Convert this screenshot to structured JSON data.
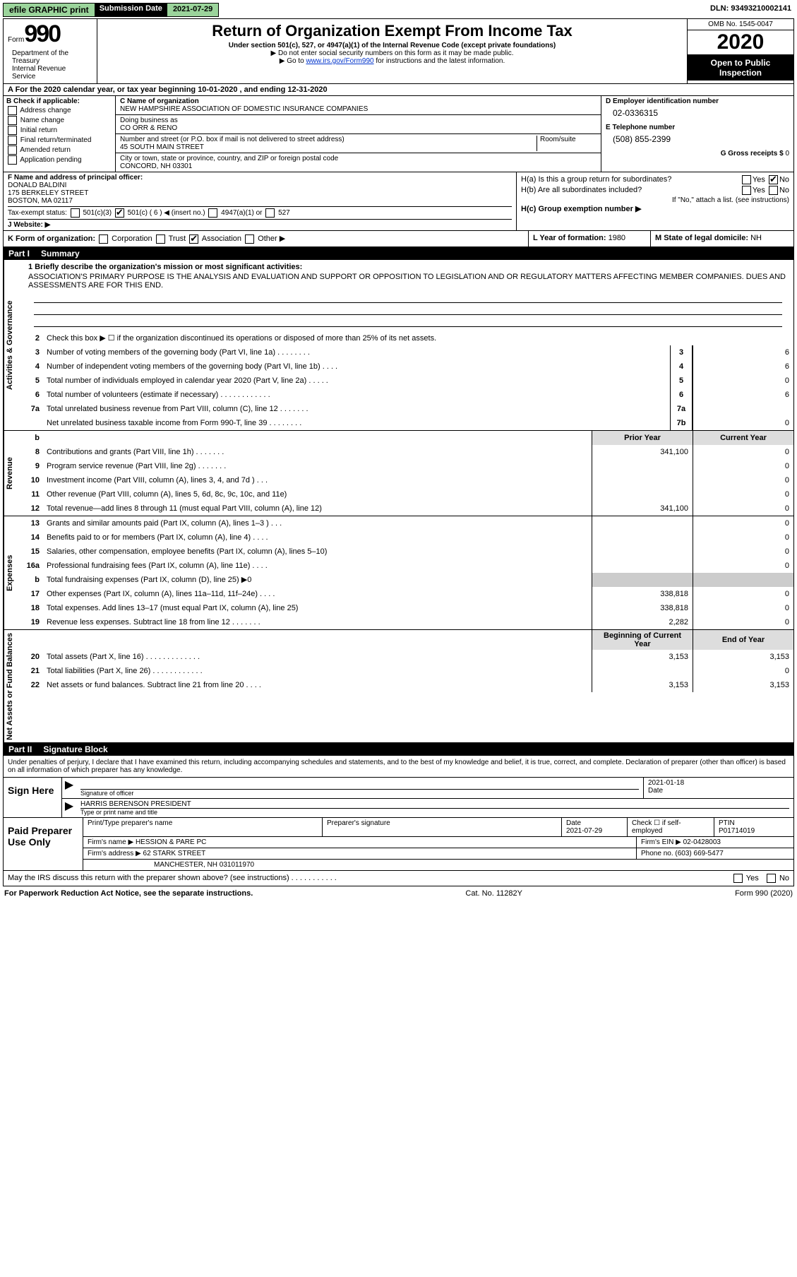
{
  "topbar": {
    "efile": "efile GRAPHIC print",
    "submission_label": "Submission Date",
    "submission_date": "2021-07-29",
    "dln_label": "DLN:",
    "dln": "93493210002141"
  },
  "header": {
    "form_word": "Form",
    "form_num": "990",
    "title": "Return of Organization Exempt From Income Tax",
    "subtitle": "Under section 501(c), 527, or 4947(a)(1) of the Internal Revenue Code (except private foundations)",
    "note1": "▶ Do not enter social security numbers on this form as it may be made public.",
    "note2_pre": "▶ Go to ",
    "note2_link": "www.irs.gov/Form990",
    "note2_post": " for instructions and the latest information.",
    "omb": "OMB No. 1545-0047",
    "year": "2020",
    "open": "Open to Public Inspection",
    "dept": "Department of the Treasury\nInternal Revenue Service"
  },
  "period": {
    "text": "A For the 2020 calendar year, or tax year beginning 10-01-2020    , and ending 12-31-2020"
  },
  "check_applicable": {
    "label": "B Check if applicable:",
    "items": [
      "Address change",
      "Name change",
      "Initial return",
      "Final return/terminated",
      "Amended return",
      "Application pending"
    ]
  },
  "org": {
    "c_label": "C Name of organization",
    "name": "NEW HAMPSHIRE ASSOCIATION OF DOMESTIC INSURANCE COMPANIES",
    "dba_label": "Doing business as",
    "dba": "CO ORR & RENO",
    "addr_label": "Number and street (or P.O. box if mail is not delivered to street address)",
    "room_label": "Room/suite",
    "addr": "45 SOUTH MAIN STREET",
    "city_label": "City or town, state or province, country, and ZIP or foreign postal code",
    "city": "CONCORD, NH  03301"
  },
  "right_box": {
    "d_label": "D Employer identification number",
    "ein": "02-0336315",
    "e_label": "E Telephone number",
    "phone": "(508) 855-2399",
    "g_label": "G Gross receipts $",
    "gross": "0"
  },
  "officer": {
    "f_label": "F  Name and address of principal officer:",
    "name": "DONALD BALDINI",
    "addr1": "175 BERKELEY STREET",
    "addr2": "BOSTON, MA  02117"
  },
  "tax_exempt": {
    "label": "Tax-exempt status:",
    "opt1": "501(c)(3)",
    "opt2": "501(c) ( 6 ) ◀ (insert no.)",
    "opt3": "4947(a)(1) or",
    "opt4": "527"
  },
  "website": {
    "label": "J  Website: ▶"
  },
  "h_section": {
    "ha_label": "H(a)  Is this a group return for subordinates?",
    "ha_yes": "Yes",
    "ha_no": "No",
    "hb_label": "H(b)  Are all subordinates included?",
    "hb_yes": "Yes",
    "hb_no": "No",
    "hb_note": "If \"No,\" attach a list. (see instructions)",
    "hc_label": "H(c)  Group exemption number ▶"
  },
  "k_row": {
    "k_label": "K Form of organization:",
    "k_opts": [
      "Corporation",
      "Trust",
      "Association",
      "Other ▶"
    ],
    "l_label": "L Year of formation:",
    "l_val": "1980",
    "m_label": "M State of legal domicile:",
    "m_val": "NH"
  },
  "part1": {
    "partnum": "Part I",
    "title": "Summary",
    "line1_label": "1  Briefly describe the organization's mission or most significant activities:",
    "line1_text": "ASSOCIATION'S PRIMARY PURPOSE IS THE ANALYSIS AND EVALUATION AND SUPPORT OR OPPOSITION TO LEGISLATION AND OR REGULATORY MATTERS AFFECTING MEMBER COMPANIES. DUES AND ASSESSMENTS ARE FOR THIS END.",
    "line2": "Check this box ▶ ☐ if the organization discontinued its operations or disposed of more than 25% of its net assets.",
    "prior_year": "Prior Year",
    "current_year": "Current Year",
    "beg_year": "Beginning of Current Year",
    "end_year": "End of Year",
    "tabs": {
      "gov": "Activities & Governance",
      "rev": "Revenue",
      "exp": "Expenses",
      "net": "Net Assets or Fund Balances"
    },
    "lines_gov": [
      {
        "n": "3",
        "t": "Number of voting members of the governing body (Part VI, line 1a)  .   .   .   .   .   .   .   .",
        "c": "3",
        "v": "6"
      },
      {
        "n": "4",
        "t": "Number of independent voting members of the governing body (Part VI, line 1b)   .   .   .   .",
        "c": "4",
        "v": "6"
      },
      {
        "n": "5",
        "t": "Total number of individuals employed in calendar year 2020 (Part V, line 2a)   .   .   .   .   .",
        "c": "5",
        "v": "0"
      },
      {
        "n": "6",
        "t": "Total number of volunteers (estimate if necessary)   .   .   .   .   .   .   .   .   .   .   .   .",
        "c": "6",
        "v": "6"
      },
      {
        "n": "7a",
        "t": "Total unrelated business revenue from Part VIII, column (C), line 12   .   .   .   .   .   .   .",
        "c": "7a",
        "v": ""
      },
      {
        "n": "",
        "t": "Net unrelated business taxable income from Form 990-T, line 39   .   .   .   .   .   .   .   .",
        "c": "7b",
        "v": "0"
      }
    ],
    "lines_rev": [
      {
        "n": "8",
        "t": "Contributions and grants (Part VIII, line 1h)   .   .   .   .   .   .   .",
        "p": "341,100",
        "c": "0"
      },
      {
        "n": "9",
        "t": "Program service revenue (Part VIII, line 2g)   .   .   .   .   .   .   .",
        "p": "",
        "c": "0"
      },
      {
        "n": "10",
        "t": "Investment income (Part VIII, column (A), lines 3, 4, and 7d )   .   .   .",
        "p": "",
        "c": "0"
      },
      {
        "n": "11",
        "t": "Other revenue (Part VIII, column (A), lines 5, 6d, 8c, 9c, 10c, and 11e)",
        "p": "",
        "c": "0"
      },
      {
        "n": "12",
        "t": "Total revenue—add lines 8 through 11 (must equal Part VIII, column (A), line 12)",
        "p": "341,100",
        "c": "0"
      }
    ],
    "lines_exp": [
      {
        "n": "13",
        "t": "Grants and similar amounts paid (Part IX, column (A), lines 1–3 )   .   .   .",
        "p": "",
        "c": "0"
      },
      {
        "n": "14",
        "t": "Benefits paid to or for members (Part IX, column (A), line 4)   .   .   .   .",
        "p": "",
        "c": "0"
      },
      {
        "n": "15",
        "t": "Salaries, other compensation, employee benefits (Part IX, column (A), lines 5–10)",
        "p": "",
        "c": "0"
      },
      {
        "n": "16a",
        "t": "Professional fundraising fees (Part IX, column (A), line 11e)   .   .   .   .",
        "p": "",
        "c": "0"
      },
      {
        "n": "b",
        "t": "Total fundraising expenses (Part IX, column (D), line 25) ▶0",
        "p": "shaded",
        "c": "shaded"
      },
      {
        "n": "17",
        "t": "Other expenses (Part IX, column (A), lines 11a–11d, 11f–24e)   .   .   .   .",
        "p": "338,818",
        "c": "0"
      },
      {
        "n": "18",
        "t": "Total expenses. Add lines 13–17 (must equal Part IX, column (A), line 25)",
        "p": "338,818",
        "c": "0"
      },
      {
        "n": "19",
        "t": "Revenue less expenses. Subtract line 18 from line 12   .   .   .   .   .   .   .",
        "p": "2,282",
        "c": "0"
      }
    ],
    "lines_net": [
      {
        "n": "20",
        "t": "Total assets (Part X, line 16)   .   .   .   .   .   .   .   .   .   .   .   .   .",
        "p": "3,153",
        "c": "3,153"
      },
      {
        "n": "21",
        "t": "Total liabilities (Part X, line 26)   .   .   .   .   .   .   .   .   .   .   .   .",
        "p": "",
        "c": "0"
      },
      {
        "n": "22",
        "t": "Net assets or fund balances. Subtract line 21 from line 20   .   .   .   .",
        "p": "3,153",
        "c": "3,153"
      }
    ]
  },
  "part2": {
    "partnum": "Part II",
    "title": "Signature Block",
    "penalty": "Under penalties of perjury, I declare that I have examined this return, including accompanying schedules and statements, and to the best of my knowledge and belief, it is true, correct, and complete. Declaration of preparer (other than officer) is based on all information of which preparer has any knowledge.",
    "sign_here": "Sign Here",
    "sig_officer_lbl": "Signature of officer",
    "date_lbl": "Date",
    "sig_date": "2021-01-18",
    "name_title": "HARRIS BERENSON  PRESIDENT",
    "name_title_lbl": "Type or print name and title",
    "paid": "Paid Preparer Use Only",
    "prep_name_lbl": "Print/Type preparer's name",
    "prep_sig_lbl": "Preparer's signature",
    "prep_date_lbl": "Date",
    "prep_date": "2021-07-29",
    "check_self": "Check ☐ if self-employed",
    "ptin_lbl": "PTIN",
    "ptin": "P01714019",
    "firm_name_lbl": "Firm's name     ▶",
    "firm_name": "HESSION & PARE PC",
    "firm_ein_lbl": "Firm's EIN ▶",
    "firm_ein": "02-0428003",
    "firm_addr_lbl": "Firm's address ▶",
    "firm_addr1": "62 STARK STREET",
    "firm_addr2": "MANCHESTER, NH  031011970",
    "phone_lbl": "Phone no.",
    "phone": "(603) 669-5477",
    "discuss": "May the IRS discuss this return with the preparer shown above? (see instructions)   .   .   .   .   .   .   .   .   .   .   .",
    "discuss_yes": "Yes",
    "discuss_no": "No"
  },
  "footer": {
    "left": "For Paperwork Reduction Act Notice, see the separate instructions.",
    "mid": "Cat. No. 11282Y",
    "right": "Form 990 (2020)"
  }
}
